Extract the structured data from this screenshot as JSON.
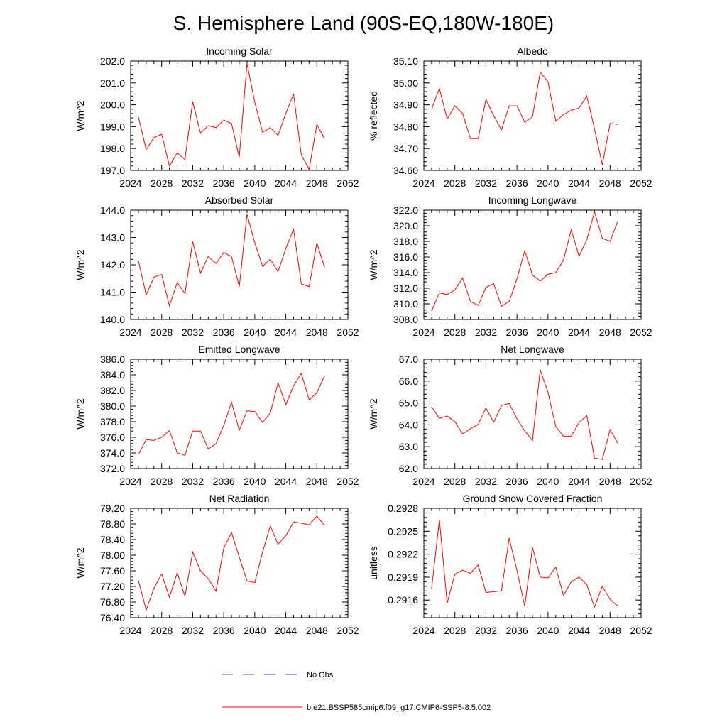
{
  "title": "S. Hemisphere Land (90S-EQ,180W-180E)",
  "x_ticks": [
    "2024",
    "2028",
    "2032",
    "2036",
    "2040",
    "2044",
    "2048",
    "2052"
  ],
  "colors": {
    "model": "#ff0000",
    "obs": "#4b4bd8",
    "axis": "#000000"
  },
  "legend": {
    "obs_label": "No Obs",
    "model_label": "b.e21.BSSP585cmip6.f09_g17.CMIP6-SSP5-8.5.002"
  },
  "chart_data": [
    {
      "type": "line",
      "title": "Incoming Solar",
      "ylabel": "W/m^2",
      "xlim": [
        2024,
        2052
      ],
      "ylim": [
        197.0,
        202.0
      ],
      "yticks": [
        "197.0",
        "198.0",
        "199.0",
        "200.0",
        "201.0",
        "202.0"
      ],
      "series": [
        {
          "name": "b.e21.BSSP585cmip6.f09_g17.CMIP6-SSP5-8.5.002",
          "x": [
            2025,
            2026,
            2027,
            2028,
            2029,
            2030,
            2031,
            2032,
            2033,
            2034,
            2035,
            2036,
            2037,
            2038,
            2039,
            2040,
            2041,
            2042,
            2043,
            2044,
            2045,
            2046,
            2047,
            2048,
            2049
          ],
          "values": [
            199.45,
            197.95,
            198.5,
            198.65,
            197.2,
            197.8,
            197.5,
            200.15,
            198.7,
            199.05,
            198.95,
            199.3,
            199.15,
            197.6,
            201.9,
            200.1,
            198.75,
            198.95,
            198.6,
            199.6,
            200.5,
            197.7,
            197.05,
            199.1,
            198.45
          ]
        }
      ]
    },
    {
      "type": "line",
      "title": "Albedo",
      "ylabel": "% reflected",
      "xlim": [
        2024,
        2052
      ],
      "ylim": [
        34.6,
        35.1
      ],
      "yticks": [
        "34.60",
        "34.70",
        "34.80",
        "34.90",
        "35.00",
        "35.10"
      ],
      "series": [
        {
          "name": "b.e21.BSSP585cmip6.f09_g17.CMIP6-SSP5-8.5.002",
          "x": [
            2025,
            2026,
            2027,
            2028,
            2029,
            2030,
            2031,
            2032,
            2033,
            2034,
            2035,
            2036,
            2037,
            2038,
            2039,
            2040,
            2041,
            2042,
            2043,
            2044,
            2045,
            2046,
            2047,
            2048,
            2049
          ],
          "values": [
            34.88,
            34.975,
            34.835,
            34.895,
            34.86,
            34.745,
            34.745,
            34.925,
            34.85,
            34.785,
            34.895,
            34.895,
            34.82,
            34.845,
            35.05,
            35.005,
            34.825,
            34.855,
            34.875,
            34.885,
            34.94,
            34.79,
            34.625,
            34.815,
            34.81
          ]
        }
      ]
    },
    {
      "type": "line",
      "title": "Absorbed Solar",
      "ylabel": "W/m^2",
      "xlim": [
        2024,
        2052
      ],
      "ylim": [
        140.0,
        144.0
      ],
      "yticks": [
        "140.0",
        "141.0",
        "142.0",
        "143.0",
        "144.0"
      ],
      "series": [
        {
          "name": "b.e21.BSSP585cmip6.f09_g17.CMIP6-SSP5-8.5.002",
          "x": [
            2025,
            2026,
            2027,
            2028,
            2029,
            2030,
            2031,
            2032,
            2033,
            2034,
            2035,
            2036,
            2037,
            2038,
            2039,
            2040,
            2041,
            2042,
            2043,
            2044,
            2045,
            2046,
            2047,
            2048,
            2049
          ],
          "values": [
            142.15,
            140.9,
            141.55,
            141.65,
            140.5,
            141.35,
            140.95,
            142.85,
            141.7,
            142.3,
            142.05,
            142.45,
            142.3,
            141.2,
            143.85,
            142.8,
            141.95,
            142.2,
            141.75,
            142.6,
            143.3,
            141.3,
            141.2,
            142.8,
            141.9
          ]
        }
      ]
    },
    {
      "type": "line",
      "title": "Incoming Longwave",
      "ylabel": "W/m^2",
      "xlim": [
        2024,
        2052
      ],
      "ylim": [
        308.0,
        322.0
      ],
      "yticks": [
        "308.0",
        "310.0",
        "312.0",
        "314.0",
        "316.0",
        "318.0",
        "320.0",
        "322.0"
      ],
      "series": [
        {
          "name": "b.e21.BSSP585cmip6.f09_g17.CMIP6-SSP5-8.5.002",
          "x": [
            2025,
            2026,
            2027,
            2028,
            2029,
            2030,
            2031,
            2032,
            2033,
            2034,
            2035,
            2036,
            2037,
            2038,
            2039,
            2040,
            2041,
            2042,
            2043,
            2044,
            2045,
            2046,
            2047,
            2048,
            2049
          ],
          "values": [
            309.1,
            311.4,
            311.2,
            311.8,
            313.3,
            310.3,
            309.8,
            312.1,
            312.6,
            309.7,
            310.3,
            313.2,
            316.8,
            313.7,
            312.9,
            313.8,
            314.0,
            315.6,
            319.5,
            316.1,
            318.2,
            321.8,
            318.4,
            318.0,
            320.6
          ]
        }
      ]
    },
    {
      "type": "line",
      "title": "Emitted Longwave",
      "ylabel": "W/m^2",
      "xlim": [
        2024,
        2052
      ],
      "ylim": [
        372.0,
        386.0
      ],
      "yticks": [
        "372.0",
        "374.0",
        "376.0",
        "378.0",
        "380.0",
        "382.0",
        "384.0",
        "386.0"
      ],
      "series": [
        {
          "name": "b.e21.BSSP585cmip6.f09_g17.CMIP6-SSP5-8.5.002",
          "x": [
            2025,
            2026,
            2027,
            2028,
            2029,
            2030,
            2031,
            2032,
            2033,
            2034,
            2035,
            2036,
            2037,
            2038,
            2039,
            2040,
            2041,
            2042,
            2043,
            2044,
            2045,
            2046,
            2047,
            2048,
            2049
          ],
          "values": [
            373.8,
            375.7,
            375.6,
            376.0,
            376.9,
            374.0,
            373.7,
            376.8,
            376.8,
            374.5,
            375.2,
            377.5,
            380.5,
            376.9,
            379.4,
            379.3,
            377.9,
            379.1,
            383.0,
            380.2,
            382.6,
            384.2,
            380.8,
            381.7,
            383.9
          ]
        }
      ]
    },
    {
      "type": "line",
      "title": "Net Longwave",
      "ylabel": "W/m^2",
      "xlim": [
        2024,
        2052
      ],
      "ylim": [
        62.0,
        67.0
      ],
      "yticks": [
        "62.0",
        "63.0",
        "64.0",
        "65.0",
        "66.0",
        "67.0"
      ],
      "series": [
        {
          "name": "b.e21.BSSP585cmip6.f09_g17.CMIP6-SSP5-8.5.002",
          "x": [
            2025,
            2026,
            2027,
            2028,
            2029,
            2030,
            2031,
            2032,
            2033,
            2034,
            2035,
            2036,
            2037,
            2038,
            2039,
            2040,
            2041,
            2042,
            2043,
            2044,
            2045,
            2046,
            2047,
            2048,
            2049
          ],
          "values": [
            64.82,
            64.3,
            64.4,
            64.15,
            63.58,
            63.82,
            64.02,
            64.77,
            64.12,
            64.88,
            64.98,
            64.28,
            63.72,
            63.28,
            66.52,
            65.48,
            63.92,
            63.48,
            63.48,
            64.1,
            64.42,
            62.48,
            62.42,
            63.78,
            63.15
          ]
        }
      ]
    },
    {
      "type": "line",
      "title": "Net Radiation",
      "ylabel": "W/m^2",
      "xlim": [
        2024,
        2052
      ],
      "ylim": [
        76.4,
        79.2
      ],
      "yticks": [
        "76.40",
        "76.80",
        "77.20",
        "77.60",
        "78.00",
        "78.40",
        "78.80",
        "79.20"
      ],
      "series": [
        {
          "name": "b.e21.BSSP585cmip6.f09_g17.CMIP6-SSP5-8.5.002",
          "x": [
            2025,
            2026,
            2027,
            2028,
            2029,
            2030,
            2031,
            2032,
            2033,
            2034,
            2035,
            2036,
            2037,
            2038,
            2039,
            2040,
            2041,
            2042,
            2043,
            2044,
            2045,
            2046,
            2047,
            2048,
            2049
          ],
          "values": [
            77.35,
            76.6,
            77.15,
            77.52,
            76.92,
            77.55,
            76.95,
            78.08,
            77.6,
            77.4,
            77.08,
            78.18,
            78.58,
            77.95,
            77.34,
            77.3,
            78.08,
            78.75,
            78.28,
            78.5,
            78.85,
            78.82,
            78.78,
            79.0,
            78.76
          ]
        }
      ]
    },
    {
      "type": "line",
      "title": "Ground Snow Covered Fraction",
      "ylabel": "unitless",
      "xlim": [
        2024,
        2052
      ],
      "ylim": [
        0.29137,
        0.2928
      ],
      "yticks": [
        "0.2916",
        "0.2919",
        "0.2922",
        "0.2925",
        "0.2928"
      ],
      "ytick_values": [
        0.2916,
        0.2919,
        0.2922,
        0.2925,
        0.2928
      ],
      "series": [
        {
          "name": "b.e21.BSSP585cmip6.f09_g17.CMIP6-SSP5-8.5.002",
          "x": [
            2025,
            2026,
            2027,
            2028,
            2029,
            2030,
            2031,
            2032,
            2033,
            2034,
            2035,
            2036,
            2037,
            2038,
            2039,
            2040,
            2041,
            2042,
            2043,
            2044,
            2045,
            2046,
            2047,
            2048,
            2049
          ],
          "values": [
            0.29175,
            0.29265,
            0.29156,
            0.29194,
            0.29199,
            0.29195,
            0.29206,
            0.2917,
            0.29171,
            0.29172,
            0.29241,
            0.29199,
            0.29152,
            0.29229,
            0.2919,
            0.29189,
            0.29203,
            0.29166,
            0.29184,
            0.2919,
            0.2918,
            0.29151,
            0.29178,
            0.29161,
            0.29152
          ]
        }
      ]
    }
  ]
}
